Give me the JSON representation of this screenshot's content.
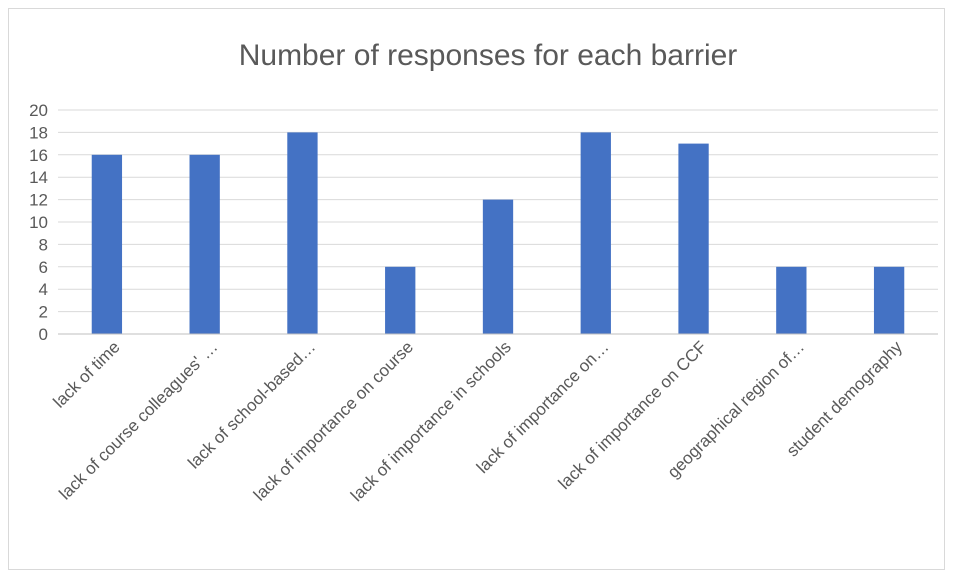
{
  "chart_data": {
    "type": "bar",
    "title": "Number of responses for each barrier",
    "xlabel": "",
    "ylabel": "",
    "ylim": [
      0,
      20
    ],
    "yticks": [
      0,
      2,
      4,
      6,
      8,
      10,
      12,
      14,
      16,
      18,
      20
    ],
    "grid": true,
    "legend": "none",
    "bar_color": "#4472C4",
    "categories": [
      "lack of time",
      "lack of course colleagues' …",
      "lack of school-based…",
      "lack of importance on course",
      "lack of importance in schools",
      "lack of importance on…",
      "lack of importance on CCF",
      "geographical region of…",
      "student demography"
    ],
    "values": [
      16,
      16,
      18,
      6,
      12,
      18,
      17,
      6,
      6
    ]
  }
}
